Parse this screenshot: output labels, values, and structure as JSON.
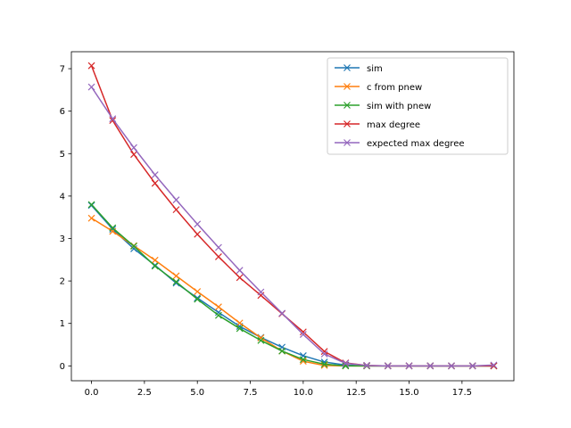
{
  "chart_data": {
    "type": "line",
    "title": "",
    "xlabel": "",
    "ylabel": "",
    "xlim": [
      -0.95,
      19.95
    ],
    "ylim": [
      -0.35,
      7.4
    ],
    "xticks": [
      0,
      2.5,
      5,
      7.5,
      10,
      12.5,
      15,
      17.5
    ],
    "xtick_labels": [
      "0.0",
      "2.5",
      "5.0",
      "7.5",
      "10.0",
      "12.5",
      "15.0",
      "17.5"
    ],
    "yticks": [
      0,
      1,
      2,
      3,
      4,
      5,
      6,
      7
    ],
    "ytick_labels": [
      "0",
      "1",
      "2",
      "3",
      "4",
      "5",
      "6",
      "7"
    ],
    "grid": false,
    "legend_position": "top-right",
    "marker": "x",
    "x": [
      0,
      1,
      2,
      3,
      4,
      5,
      6,
      7,
      8,
      9,
      10,
      11,
      12,
      13,
      14,
      15,
      16,
      17,
      18,
      19
    ],
    "series": [
      {
        "name": "sim",
        "color": "#1f77b4",
        "values": [
          3.78,
          3.22,
          2.76,
          2.37,
          1.95,
          1.6,
          1.26,
          0.93,
          0.67,
          0.44,
          0.24,
          0.09,
          0.02,
          0,
          0,
          0,
          0,
          0,
          0,
          0
        ]
      },
      {
        "name": "c from pnew",
        "color": "#ff7f0e",
        "values": [
          3.48,
          3.17,
          2.83,
          2.49,
          2.12,
          1.75,
          1.39,
          1.01,
          0.66,
          0.35,
          0.11,
          0.01,
          0,
          0,
          0,
          0,
          0,
          0,
          0,
          0
        ]
      },
      {
        "name": "sim with pnew",
        "color": "#2ca02c",
        "values": [
          3.8,
          3.25,
          2.82,
          2.35,
          1.98,
          1.57,
          1.19,
          0.88,
          0.6,
          0.35,
          0.15,
          0.04,
          0,
          0,
          0,
          0,
          0,
          0,
          0,
          0
        ]
      },
      {
        "name": "max degree",
        "color": "#d62728",
        "values": [
          7.07,
          5.78,
          4.98,
          4.3,
          3.68,
          3.1,
          2.57,
          2.08,
          1.66,
          1.23,
          0.8,
          0.34,
          0.07,
          0.01,
          0,
          0,
          0,
          0,
          0,
          0
        ]
      },
      {
        "name": "expected max degree",
        "color": "#9467bd",
        "values": [
          6.57,
          5.82,
          5.14,
          4.5,
          3.91,
          3.34,
          2.79,
          2.25,
          1.74,
          1.24,
          0.74,
          0.28,
          0.06,
          0.01,
          0,
          0,
          0,
          0,
          0,
          0.02
        ]
      }
    ]
  }
}
